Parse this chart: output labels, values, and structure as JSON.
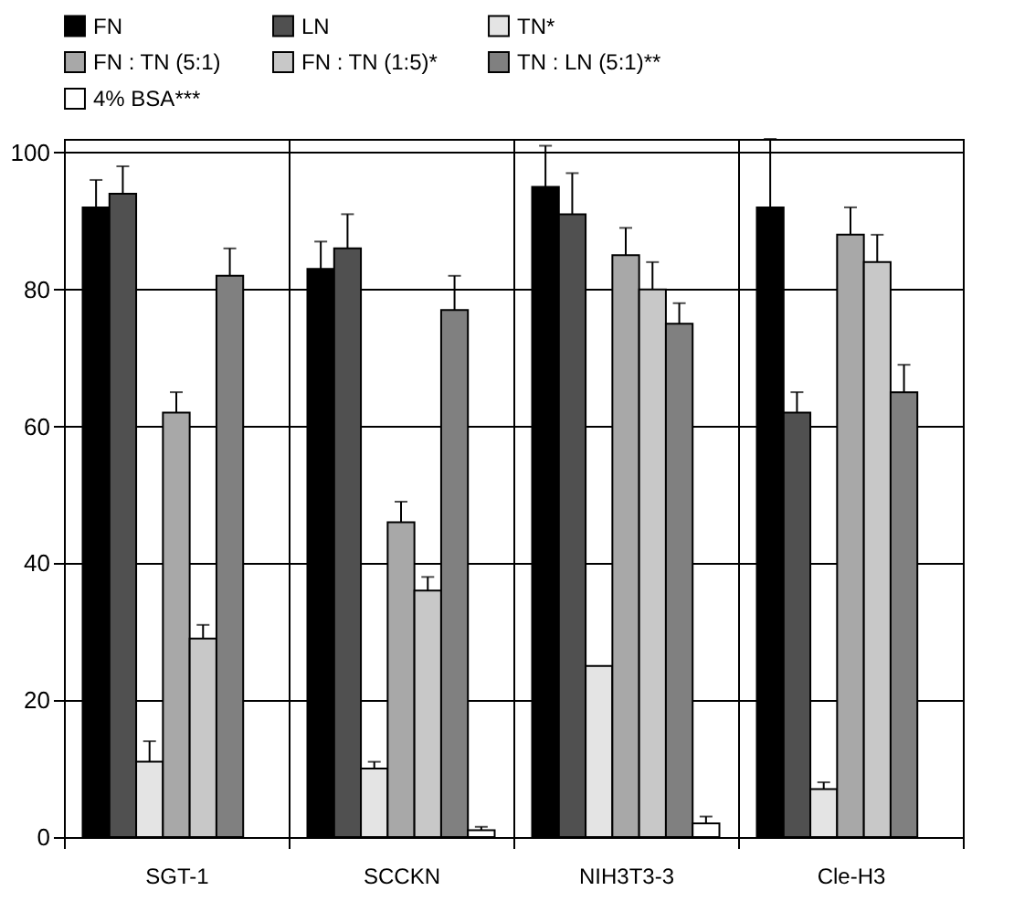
{
  "chart_data": {
    "type": "bar",
    "categories": [
      "SGT-1",
      "SCCKN",
      "NIH3T3-3",
      "Cle-H3"
    ],
    "series": [
      {
        "name": "FN",
        "color": "#000000",
        "values": [
          92,
          83,
          95,
          92
        ],
        "errors": [
          4,
          4,
          6,
          10
        ]
      },
      {
        "name": "LN",
        "color": "#505050",
        "values": [
          94,
          86,
          91,
          62
        ],
        "errors": [
          4,
          5,
          6,
          3
        ]
      },
      {
        "name": "TN*",
        "color": "#e4e4e4",
        "values": [
          11,
          10,
          25,
          7
        ],
        "errors": [
          3,
          1,
          null,
          1
        ]
      },
      {
        "name": "FN : TN (5:1)",
        "color": "#a8a8a8",
        "values": [
          62,
          46,
          85,
          88
        ],
        "errors": [
          3,
          3,
          4,
          4
        ]
      },
      {
        "name": "FN : TN (1:5)*",
        "color": "#c8c8c8",
        "values": [
          29,
          36,
          80,
          84
        ],
        "errors": [
          2,
          2,
          4,
          4
        ]
      },
      {
        "name": "TN : LN (5:1)**",
        "color": "#808080",
        "values": [
          82,
          77,
          75,
          65
        ],
        "errors": [
          4,
          5,
          3,
          4
        ]
      },
      {
        "name": "4% BSA***",
        "color": "#ffffff",
        "values": [
          0,
          1,
          2,
          0
        ],
        "errors": [
          null,
          0.5,
          1,
          null
        ]
      }
    ],
    "ylim": [
      0,
      102
    ],
    "yticks": [
      0,
      20,
      40,
      60,
      80,
      100
    ],
    "grid": true,
    "legend": "top"
  }
}
